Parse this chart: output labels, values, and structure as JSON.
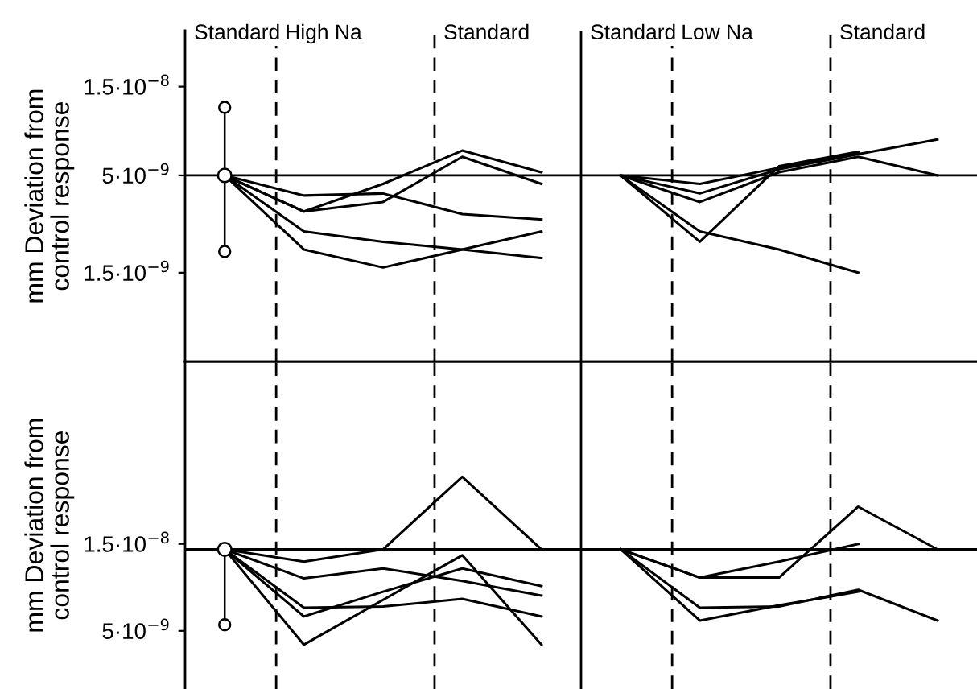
{
  "chart_data": [
    {
      "type": "line",
      "categories": [
        null,
        null,
        null,
        null,
        null,
        null,
        null,
        null,
        null,
        null
      ],
      "log": true,
      "ylim": [
        5e-10,
        3e-08
      ],
      "yticks": [
        {
          "value": 1.5e-08,
          "label": "1.5·10$^{−8}$"
        },
        {
          "value": 5e-09,
          "label": "5·10$^{−9}$"
        },
        {
          "value": 1.5e-09,
          "label": "1.5·10$^{−9}$"
        }
      ],
      "ylabel": "mm Deviation from\ncontrol response",
      "tick_labels": "y",
      "annotations": [
        "Standard",
        "High Na",
        "Standard",
        "Standard",
        "Low Na",
        "Standard"
      ],
      "ref_lines": [
        {
          "axis": "y",
          "value": 5e-09,
          "line_style": "solid"
        }
      ],
      "series": [
        {
          "color": "#000000",
          "values": [
            5e-09,
            3.9e-09,
            4e-09,
            3.1e-09,
            2.9e-09,
            null,
            null,
            null,
            null,
            null
          ]
        },
        {
          "color": "#000000",
          "values": [
            5e-09,
            3.2e-09,
            4.5e-09,
            6.8e-09,
            5.2e-09,
            null,
            null,
            null,
            null,
            null
          ]
        },
        {
          "color": "#000000",
          "values": [
            5e-09,
            3.2e-09,
            3.6e-09,
            6.3e-09,
            4.5e-09,
            null,
            null,
            null,
            null,
            null
          ]
        },
        {
          "color": "#000000",
          "values": [
            5e-09,
            2.5e-09,
            2.2e-09,
            2e-09,
            1.8e-09,
            null,
            null,
            null,
            null,
            null
          ]
        },
        {
          "color": "#000000",
          "values": [
            5e-09,
            2e-09,
            1.6e-09,
            2e-09,
            2.5e-09,
            null,
            null,
            null,
            null,
            null
          ]
        },
        {
          "color": "#000000",
          "values": [
            null,
            null,
            null,
            null,
            null,
            5e-09,
            2.2e-09,
            5.6e-09,
            6.7e-09,
            null
          ]
        },
        {
          "color": "#000000",
          "values": [
            null,
            null,
            null,
            null,
            null,
            5e-09,
            2.5e-09,
            2e-09,
            1.5e-09,
            null
          ]
        },
        {
          "color": "#000000",
          "values": [
            null,
            null,
            null,
            null,
            null,
            5e-09,
            3.6e-09,
            5.2e-09,
            6.3e-09,
            5e-09
          ]
        },
        {
          "color": "#000000",
          "values": [
            null,
            null,
            null,
            null,
            null,
            5e-09,
            4e-09,
            5.4e-09,
            6.5e-09,
            7.8e-09
          ]
        },
        {
          "color": "#000000",
          "values": [
            null,
            null,
            null,
            null,
            null,
            5e-09,
            4.5e-09,
            5.5e-09,
            6.6e-09,
            null
          ]
        },
        {
          "type": "scatter",
          "marker": "circle",
          "color": "#000000",
          "values": [
            5e-09,
            null,
            null,
            null,
            null,
            null,
            null,
            null,
            null,
            null
          ],
          "errors": [
            [
              1.95e-09,
              1.16e-08
            ],
            null,
            null,
            null,
            null,
            null,
            null,
            null,
            null,
            null
          ]
        }
      ]
    },
    {
      "type": "line",
      "categories": [
        null,
        null,
        null,
        null,
        null,
        null,
        null,
        null,
        null,
        null
      ],
      "log": true,
      "ylim": [
        2.4e-09,
        1.5e-07
      ],
      "yticks": [
        {
          "value": 1.5e-08,
          "label": "1.5·10$^{−8}$"
        },
        {
          "value": 5e-09,
          "label": "5·10$^{−9}$"
        }
      ],
      "ylabel": "mm Deviation from\ncontrol response",
      "tick_labels": "y",
      "ref_lines": [
        {
          "axis": "y",
          "value": 1.4e-08,
          "line_style": "solid"
        }
      ],
      "series": [
        {
          "color": "#000000",
          "values": [
            1.4e-08,
            1.2e-08,
            1.4e-08,
            3.5e-08,
            1.4e-08,
            null,
            null,
            null,
            null,
            null
          ]
        },
        {
          "color": "#000000",
          "values": [
            1.4e-08,
            9.7e-09,
            1.1e-08,
            9.4e-09,
            7.8e-09,
            null,
            null,
            null,
            null,
            null
          ]
        },
        {
          "color": "#000000",
          "values": [
            1.4e-08,
            6.7e-09,
            6.8e-09,
            7.5e-09,
            6e-09,
            null,
            null,
            null,
            null,
            null
          ]
        },
        {
          "color": "#000000",
          "values": [
            1.4e-08,
            6e-09,
            8.2e-09,
            1.1e-08,
            8.8e-09,
            null,
            null,
            null,
            null,
            null
          ]
        },
        {
          "color": "#000000",
          "values": [
            1.4e-08,
            4.2e-09,
            7.4e-09,
            1.3e-08,
            4.2e-09,
            null,
            null,
            null,
            null,
            null
          ]
        },
        {
          "color": "#000000",
          "values": [
            null,
            null,
            null,
            null,
            null,
            1.4e-08,
            9.8e-09,
            9.8e-09,
            2.4e-08,
            1.4e-08
          ]
        },
        {
          "color": "#000000",
          "values": [
            null,
            null,
            null,
            null,
            null,
            1.4e-08,
            9.8e-09,
            1.2e-08,
            1.5e-08,
            null
          ]
        },
        {
          "color": "#000000",
          "values": [
            null,
            null,
            null,
            null,
            null,
            1.4e-08,
            6.7e-09,
            6.8e-09,
            8.4e-09,
            5.7e-09
          ]
        },
        {
          "color": "#000000",
          "values": [
            null,
            null,
            null,
            null,
            null,
            1.4e-08,
            5.7e-09,
            6.9e-09,
            8.2e-09,
            null
          ]
        },
        {
          "type": "scatter",
          "marker": "circle",
          "color": "#000000",
          "values": [
            1.4e-08,
            null,
            null,
            null,
            null,
            null,
            null,
            null,
            null,
            null
          ],
          "errors": [
            [
              5.4e-09,
              1.4e-08
            ],
            null,
            null,
            null,
            null,
            null,
            null,
            null,
            null,
            null
          ]
        }
      ]
    }
  ]
}
